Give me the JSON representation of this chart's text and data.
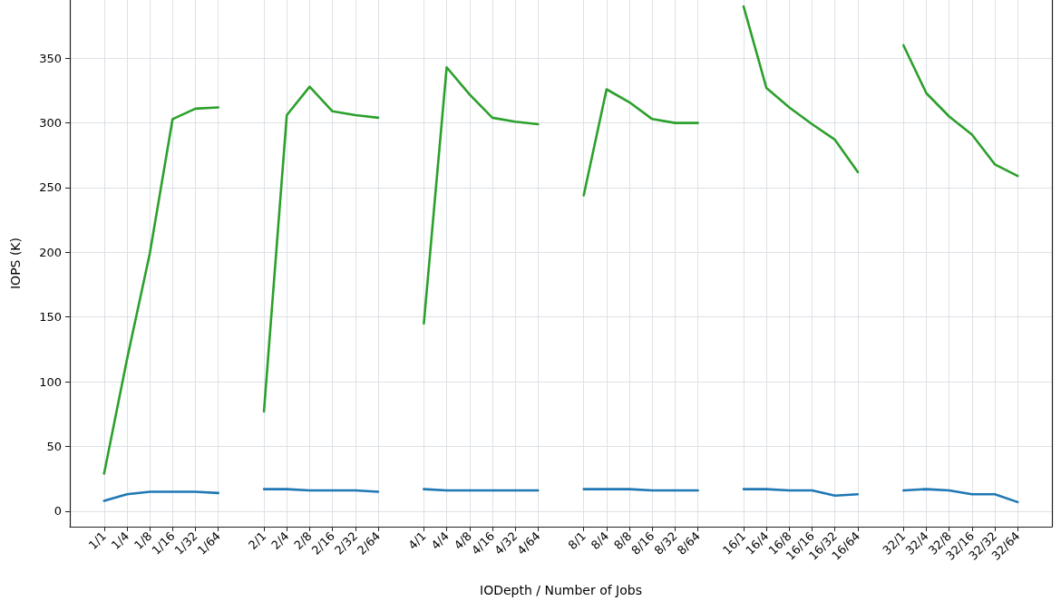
{
  "chart_data": {
    "type": "line",
    "xlabel": "IODepth / Number of Jobs",
    "ylabel": "IOPS (K)",
    "categories": [
      null,
      "1/1",
      "1/4",
      "1/8",
      "1/16",
      "1/32",
      "1/64",
      null,
      "2/1",
      "2/4",
      "2/8",
      "2/16",
      "2/32",
      "2/64",
      null,
      "4/1",
      "4/4",
      "4/8",
      "4/16",
      "4/32",
      "4/64",
      null,
      "8/1",
      "8/4",
      "8/8",
      "8/16",
      "8/32",
      "8/64",
      null,
      "16/1",
      "16/4",
      "16/8",
      "16/16",
      "16/32",
      "16/64",
      null,
      "32/1",
      "32/4",
      "32/8",
      "32/16",
      "32/32",
      "32/64",
      null
    ],
    "ylim": [
      -12,
      395
    ],
    "yticks": [
      0,
      50,
      100,
      150,
      200,
      250,
      300,
      350
    ],
    "grid": true,
    "marker": "none",
    "line_style": "solid",
    "series": [
      {
        "color": "#1f77b4",
        "values": [
          null,
          8,
          13,
          15,
          15,
          15,
          14,
          null,
          17,
          17,
          16,
          16,
          16,
          15,
          null,
          17,
          16,
          16,
          16,
          16,
          16,
          null,
          17,
          17,
          17,
          16,
          16,
          16,
          null,
          17,
          17,
          16,
          16,
          12,
          13,
          null,
          16,
          17,
          16,
          13,
          13,
          7,
          null
        ]
      },
      {
        "color": "#2ca02c",
        "values": [
          null,
          29,
          117,
          199,
          303,
          311,
          312,
          null,
          77,
          306,
          328,
          309,
          306,
          304,
          null,
          145,
          343,
          322,
          304,
          301,
          299,
          null,
          244,
          326,
          316,
          303,
          300,
          300,
          null,
          390,
          327,
          312,
          299,
          287,
          262,
          null,
          360,
          323,
          305,
          291,
          268,
          259,
          null
        ]
      }
    ]
  }
}
